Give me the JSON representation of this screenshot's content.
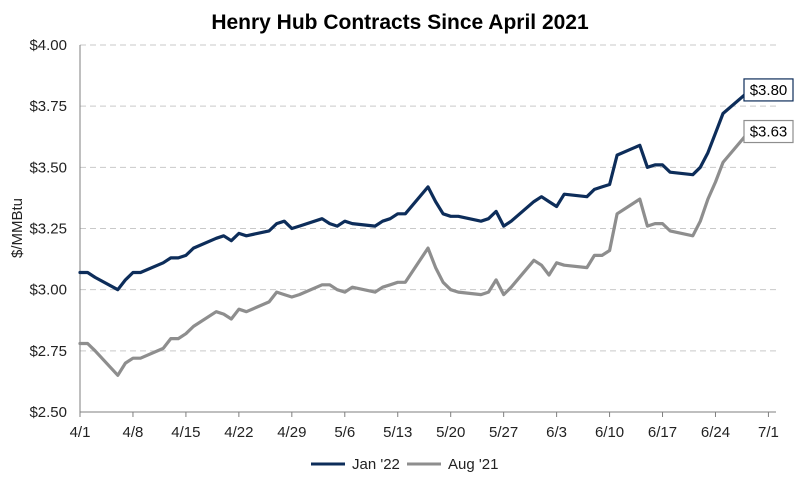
{
  "chart_data": {
    "type": "line",
    "title": "Henry Hub Contracts Since April 2021",
    "xlabel": "",
    "ylabel": "$/MMBtu",
    "ylim": [
      2.5,
      4.0
    ],
    "y_ticks": [
      2.5,
      2.75,
      3.0,
      3.25,
      3.5,
      3.75,
      4.0
    ],
    "y_tick_labels": [
      "$2.50",
      "$2.75",
      "$3.00",
      "$3.25",
      "$3.50",
      "$3.75",
      "$4.00"
    ],
    "x_tick_labels": [
      "4/1",
      "4/8",
      "4/15",
      "4/22",
      "4/29",
      "5/6",
      "5/13",
      "5/20",
      "5/27",
      "6/3",
      "6/10",
      "6/17",
      "6/24",
      "7/1"
    ],
    "x_tick_days": [
      0,
      7,
      14,
      21,
      28,
      35,
      42,
      49,
      56,
      63,
      70,
      77,
      84,
      91
    ],
    "xlim_days": [
      0,
      92
    ],
    "grid": true,
    "legend_position": "bottom-center",
    "series": [
      {
        "name": "Jan '22",
        "color": "#0d2d5a",
        "end_label": "$3.80",
        "x": [
          0,
          1,
          2,
          5,
          6,
          7,
          8,
          11,
          12,
          13,
          14,
          15,
          18,
          19,
          20,
          21,
          22,
          25,
          26,
          27,
          28,
          29,
          32,
          33,
          34,
          35,
          36,
          39,
          40,
          41,
          42,
          43,
          46,
          47,
          48,
          49,
          50,
          53,
          54,
          55,
          56,
          57,
          60,
          61,
          62,
          63,
          64,
          67,
          68,
          69,
          70,
          71,
          74,
          75,
          76,
          77,
          78,
          81,
          82,
          83,
          84,
          85,
          88
        ],
        "values": [
          3.07,
          3.07,
          3.05,
          3.0,
          3.04,
          3.07,
          3.07,
          3.11,
          3.13,
          3.13,
          3.14,
          3.17,
          3.21,
          3.22,
          3.2,
          3.23,
          3.22,
          3.24,
          3.27,
          3.28,
          3.25,
          3.26,
          3.29,
          3.27,
          3.26,
          3.28,
          3.27,
          3.26,
          3.28,
          3.29,
          3.31,
          3.31,
          3.42,
          3.36,
          3.31,
          3.3,
          3.3,
          3.28,
          3.29,
          3.32,
          3.26,
          3.28,
          3.36,
          3.38,
          3.36,
          3.34,
          3.39,
          3.38,
          3.41,
          3.42,
          3.43,
          3.55,
          3.59,
          3.5,
          3.51,
          3.51,
          3.48,
          3.47,
          3.5,
          3.56,
          3.64,
          3.72,
          3.8
        ]
      },
      {
        "name": "Aug '21",
        "color": "#8e8e8e",
        "end_label": "$3.63",
        "x": [
          0,
          1,
          2,
          5,
          6,
          7,
          8,
          11,
          12,
          13,
          14,
          15,
          18,
          19,
          20,
          21,
          22,
          25,
          26,
          27,
          28,
          29,
          32,
          33,
          34,
          35,
          36,
          39,
          40,
          41,
          42,
          43,
          46,
          47,
          48,
          49,
          50,
          53,
          54,
          55,
          56,
          57,
          60,
          61,
          62,
          63,
          64,
          67,
          68,
          69,
          70,
          71,
          74,
          75,
          76,
          77,
          78,
          81,
          82,
          83,
          84,
          85,
          88
        ],
        "values": [
          2.78,
          2.78,
          2.75,
          2.65,
          2.7,
          2.72,
          2.72,
          2.76,
          2.8,
          2.8,
          2.82,
          2.85,
          2.91,
          2.9,
          2.88,
          2.92,
          2.91,
          2.95,
          2.99,
          2.98,
          2.97,
          2.98,
          3.02,
          3.02,
          3.0,
          2.99,
          3.01,
          2.99,
          3.01,
          3.02,
          3.03,
          3.03,
          3.17,
          3.09,
          3.03,
          3.0,
          2.99,
          2.98,
          2.99,
          3.04,
          2.98,
          3.01,
          3.12,
          3.1,
          3.06,
          3.11,
          3.1,
          3.09,
          3.14,
          3.14,
          3.16,
          3.31,
          3.37,
          3.26,
          3.27,
          3.27,
          3.24,
          3.22,
          3.28,
          3.37,
          3.44,
          3.52,
          3.63
        ]
      }
    ]
  }
}
